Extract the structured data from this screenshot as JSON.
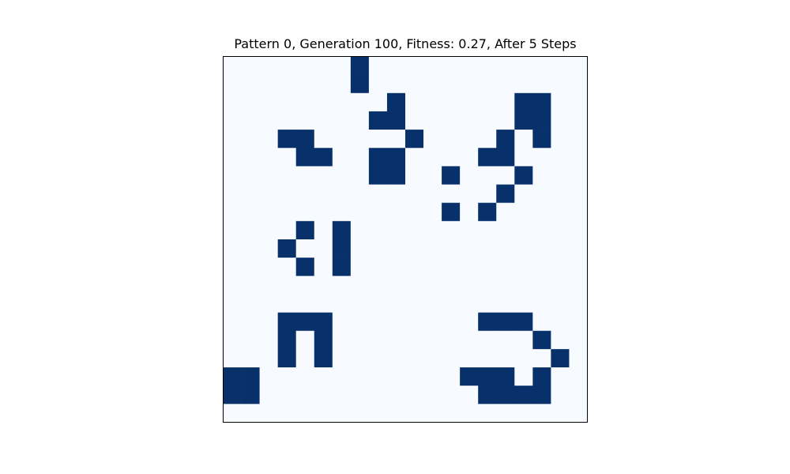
{
  "chart_data": {
    "type": "heatmap",
    "title": "Pattern 0, Generation 100, Fitness: 0.27, After 5 Steps",
    "rows": 20,
    "cols": 20,
    "colormap": {
      "0": "#f7fbff",
      "1": "#08306b"
    },
    "grid": [
      [
        0,
        0,
        0,
        0,
        0,
        0,
        0,
        1,
        0,
        0,
        0,
        0,
        0,
        0,
        0,
        0,
        0,
        0,
        0,
        0
      ],
      [
        0,
        0,
        0,
        0,
        0,
        0,
        0,
        1,
        0,
        0,
        0,
        0,
        0,
        0,
        0,
        0,
        0,
        0,
        0,
        0
      ],
      [
        0,
        0,
        0,
        0,
        0,
        0,
        0,
        0,
        0,
        1,
        0,
        0,
        0,
        0,
        0,
        0,
        1,
        1,
        0,
        0
      ],
      [
        0,
        0,
        0,
        0,
        0,
        0,
        0,
        0,
        1,
        1,
        0,
        0,
        0,
        0,
        0,
        0,
        1,
        1,
        0,
        0
      ],
      [
        0,
        0,
        0,
        1,
        1,
        0,
        0,
        0,
        0,
        0,
        1,
        0,
        0,
        0,
        0,
        1,
        0,
        1,
        0,
        0
      ],
      [
        0,
        0,
        0,
        0,
        1,
        1,
        0,
        0,
        1,
        1,
        0,
        0,
        0,
        0,
        1,
        1,
        0,
        0,
        0,
        0
      ],
      [
        0,
        0,
        0,
        0,
        0,
        0,
        0,
        0,
        1,
        1,
        0,
        0,
        1,
        0,
        0,
        0,
        1,
        0,
        0,
        0
      ],
      [
        0,
        0,
        0,
        0,
        0,
        0,
        0,
        0,
        0,
        0,
        0,
        0,
        0,
        0,
        0,
        1,
        0,
        0,
        0,
        0
      ],
      [
        0,
        0,
        0,
        0,
        0,
        0,
        0,
        0,
        0,
        0,
        0,
        0,
        1,
        0,
        1,
        0,
        0,
        0,
        0,
        0
      ],
      [
        0,
        0,
        0,
        0,
        1,
        0,
        1,
        0,
        0,
        0,
        0,
        0,
        0,
        0,
        0,
        0,
        0,
        0,
        0,
        0
      ],
      [
        0,
        0,
        0,
        1,
        0,
        0,
        1,
        0,
        0,
        0,
        0,
        0,
        0,
        0,
        0,
        0,
        0,
        0,
        0,
        0
      ],
      [
        0,
        0,
        0,
        0,
        1,
        0,
        1,
        0,
        0,
        0,
        0,
        0,
        0,
        0,
        0,
        0,
        0,
        0,
        0,
        0
      ],
      [
        0,
        0,
        0,
        0,
        0,
        0,
        0,
        0,
        0,
        0,
        0,
        0,
        0,
        0,
        0,
        0,
        0,
        0,
        0,
        0
      ],
      [
        0,
        0,
        0,
        0,
        0,
        0,
        0,
        0,
        0,
        0,
        0,
        0,
        0,
        0,
        0,
        0,
        0,
        0,
        0,
        0
      ],
      [
        0,
        0,
        0,
        1,
        1,
        1,
        0,
        0,
        0,
        0,
        0,
        0,
        0,
        0,
        1,
        1,
        1,
        0,
        0,
        0
      ],
      [
        0,
        0,
        0,
        1,
        0,
        1,
        0,
        0,
        0,
        0,
        0,
        0,
        0,
        0,
        0,
        0,
        0,
        1,
        0,
        0
      ],
      [
        0,
        0,
        0,
        1,
        0,
        1,
        0,
        0,
        0,
        0,
        0,
        0,
        0,
        0,
        0,
        0,
        0,
        0,
        1,
        0
      ],
      [
        1,
        1,
        0,
        0,
        0,
        0,
        0,
        0,
        0,
        0,
        0,
        0,
        0,
        1,
        1,
        1,
        0,
        1,
        0,
        0
      ],
      [
        1,
        1,
        0,
        0,
        0,
        0,
        0,
        0,
        0,
        0,
        0,
        0,
        0,
        0,
        1,
        1,
        1,
        1,
        0,
        0
      ],
      [
        0,
        0,
        0,
        0,
        0,
        0,
        0,
        0,
        0,
        0,
        0,
        0,
        0,
        0,
        0,
        0,
        0,
        0,
        0,
        0
      ]
    ]
  }
}
